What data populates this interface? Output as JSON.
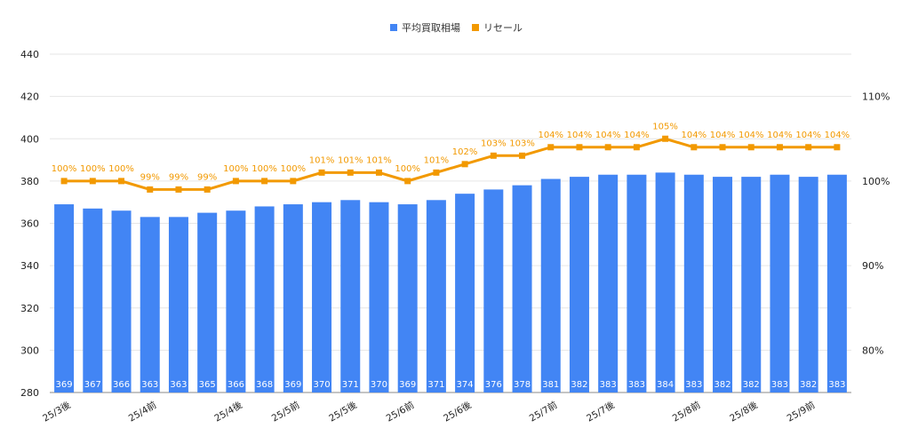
{
  "chart_data": {
    "type": "bar",
    "legend_position": "top-center",
    "grid": true,
    "colors": {
      "bar": "#4285f4",
      "line": "#f29900",
      "grid": "#e6e6e6"
    },
    "categories": [
      "25/3後",
      "",
      "",
      "25/4前",
      "",
      "",
      "25/4後",
      "",
      "25/5前",
      "",
      "25/5後",
      "",
      "25/6前",
      "",
      "25/6後",
      "",
      "",
      "25/7前",
      "",
      "25/7後",
      "",
      "",
      "25/8前",
      "",
      "25/8後",
      "",
      "25/9前",
      ""
    ],
    "series": [
      {
        "name": "平均買取相場",
        "type": "bar",
        "axis": "left",
        "values": [
          369,
          367,
          366,
          363,
          363,
          365,
          366,
          368,
          369,
          370,
          371,
          370,
          369,
          371,
          374,
          376,
          378,
          381,
          382,
          383,
          383,
          384,
          383,
          382,
          382,
          383,
          382,
          383
        ]
      },
      {
        "name": "リセール",
        "type": "line",
        "axis": "right",
        "values": [
          100,
          100,
          100,
          99,
          99,
          99,
          100,
          100,
          100,
          101,
          101,
          101,
          100,
          101,
          102,
          103,
          103,
          104,
          104,
          104,
          104,
          105,
          104,
          104,
          104,
          104,
          104,
          104
        ],
        "labels": [
          "100%",
          "100%",
          "100%",
          "99%",
          "99%",
          "99%",
          "100%",
          "100%",
          "100%",
          "101%",
          "101%",
          "101%",
          "100%",
          "101%",
          "102%",
          "103%",
          "103%",
          "104%",
          "104%",
          "104%",
          "104%",
          "105%",
          "104%",
          "104%",
          "104%",
          "104%",
          "104%",
          "104%"
        ]
      }
    ],
    "y_left": {
      "ylim": [
        280,
        440
      ],
      "ticks": [
        "280",
        "300",
        "320",
        "340",
        "360",
        "380",
        "400",
        "420",
        "440"
      ]
    },
    "y_right": {
      "ylim": [
        75,
        115
      ],
      "ticks": [
        "80%",
        "90%",
        "100%",
        "110%"
      ],
      "tick_values": [
        80,
        90,
        100,
        110
      ]
    }
  }
}
